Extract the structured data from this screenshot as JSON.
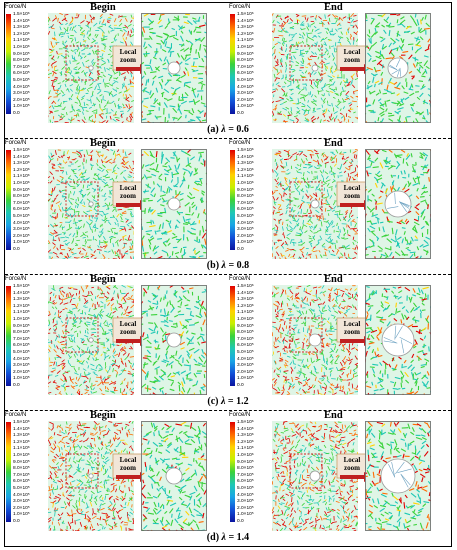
{
  "figure": {
    "panels": [
      {
        "caption_label": "(a)",
        "caption_var": "λ",
        "caption_value": "= 0.6",
        "begin": {
          "title": "Begin",
          "callout": [
            "Local",
            "zoom"
          ],
          "colorbar_title": "Force/N"
        },
        "end": {
          "title": "End",
          "callout": [
            "Local",
            "zoom"
          ],
          "colorbar_title": "Force/N"
        }
      },
      {
        "caption_label": "(b)",
        "caption_var": "λ",
        "caption_value": "= 0.8",
        "begin": {
          "title": "Begin",
          "callout": [
            "Local",
            "zoom"
          ],
          "colorbar_title": "Force/N"
        },
        "end": {
          "title": "End",
          "callout": [
            "Local",
            "zoom"
          ],
          "colorbar_title": "Force/N"
        }
      },
      {
        "caption_label": "(c)",
        "caption_var": "λ",
        "caption_value": "= 1.2",
        "begin": {
          "title": "Begin",
          "callout": [
            "Local",
            "zoom"
          ],
          "colorbar_title": "Force/N"
        },
        "end": {
          "title": "End",
          "callout": [
            "Local",
            "zoom"
          ],
          "colorbar_title": "Force/N"
        }
      },
      {
        "caption_label": "(d)",
        "caption_var": "λ",
        "caption_value": "= 1.4",
        "begin": {
          "title": "Begin",
          "callout": [
            "Local",
            "zoom"
          ],
          "colorbar_title": "Force/N"
        },
        "end": {
          "title": "End",
          "callout": [
            "Local",
            "zoom"
          ],
          "colorbar_title": "Force/N"
        }
      }
    ],
    "colorbar_ticks": [
      "1.5×10⁶",
      "1.4×10⁶",
      "1.3×10⁶",
      "1.2×10⁶",
      "1.1×10⁶",
      "1.0×10⁶",
      "9.0×10⁵",
      "8.0×10⁵",
      "7.0×10⁵",
      "6.0×10⁵",
      "5.0×10⁵",
      "4.0×10⁵",
      "3.0×10⁵",
      "2.0×10⁵",
      "1.0×10⁵",
      "0.0"
    ],
    "colors": {
      "red": "#e00000",
      "orange": "#ff6a00",
      "yellow": "#ffd200",
      "green": "#39d23a",
      "cyan": "#1ec8b4",
      "blue": "#0a14a0",
      "callout_bg": "#f2e6d8",
      "callout_border": "#c8a068",
      "zoom_box": "#d02020"
    }
  }
}
